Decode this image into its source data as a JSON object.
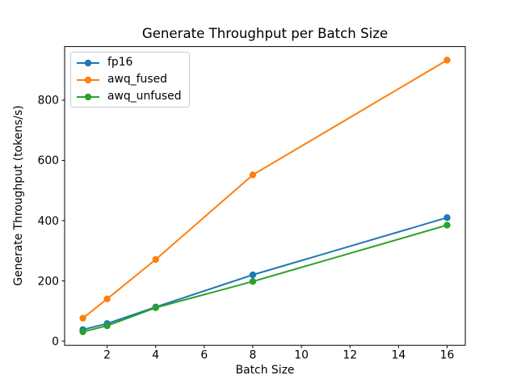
{
  "chart_data": {
    "type": "line",
    "title": "Generate Throughput per Batch Size",
    "xlabel": "Batch Size",
    "ylabel": "Generate Throughput (tokens/s)",
    "x": [
      1,
      2,
      4,
      8,
      16
    ],
    "series": [
      {
        "name": "fp16",
        "color": "#1f77b4",
        "values": [
          38,
          58,
          113,
          220,
          410
        ]
      },
      {
        "name": "awq_fused",
        "color": "#ff7f0e",
        "values": [
          76,
          140,
          271,
          552,
          933
        ]
      },
      {
        "name": "awq_unfused",
        "color": "#2ca02c",
        "values": [
          31,
          51,
          111,
          198,
          385
        ]
      }
    ],
    "xticks": [
      2,
      4,
      6,
      8,
      10,
      12,
      14,
      16
    ],
    "yticks": [
      0,
      200,
      400,
      600,
      800
    ],
    "xlim": [
      0.25,
      16.75
    ],
    "ylim": [
      -14,
      978
    ],
    "grid": false,
    "legend_position": "upper left",
    "marker": "o",
    "axis_color": "#000000",
    "legend_border_color": "#cccccc",
    "background_color": "#ffffff"
  }
}
